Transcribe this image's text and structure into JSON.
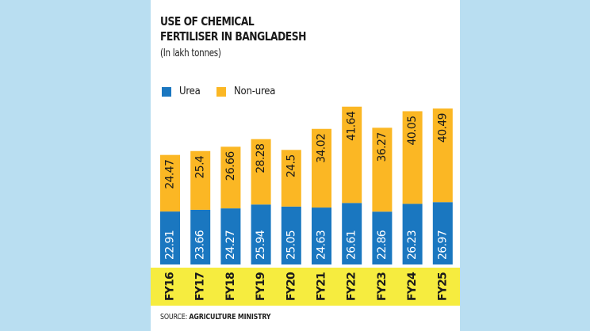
{
  "header": {
    "title_line1": "USE OF CHEMICAL",
    "title_line2": "FERTILISER IN BANGLADESH",
    "subtitle": "(In lakh tonnes)"
  },
  "legend": {
    "urea_label": "Urea",
    "nonurea_label": "Non-urea"
  },
  "source": {
    "prefix": "SOURCE: ",
    "name": "AGRICULTURE MINISTRY"
  },
  "colors": {
    "urea": "#1a77c0",
    "nonurea": "#fbb724",
    "band": "#f6ec3f",
    "background": "#b9def1",
    "card": "#ffffff"
  },
  "chart_data": {
    "type": "bar",
    "stacked": true,
    "title": "USE OF CHEMICAL FERTILISER IN BANGLADESH",
    "subtitle": "(In lakh tonnes)",
    "categories": [
      "FY16",
      "FY17",
      "FY18",
      "FY19",
      "FY20",
      "FY21",
      "FY22",
      "FY23",
      "FY24",
      "FY25"
    ],
    "series": [
      {
        "name": "Urea",
        "values": [
          22.91,
          23.66,
          24.27,
          25.94,
          25.05,
          24.63,
          26.61,
          22.86,
          26.23,
          26.97
        ]
      },
      {
        "name": "Non-urea",
        "values": [
          24.47,
          25.4,
          26.66,
          28.28,
          24.5,
          34.02,
          41.64,
          36.27,
          40.05,
          40.49
        ]
      }
    ],
    "value_labels": {
      "urea": [
        "22.91",
        "23.66",
        "24.27",
        "25.94",
        "25.05",
        "24.63",
        "26.61",
        "22.86",
        "26.23",
        "26.97"
      ],
      "nonurea": [
        "24.47",
        "25.4",
        "26.66",
        "28.28",
        "24.5",
        "34.02",
        "41.64",
        "36.27",
        "40.05",
        "40.49"
      ]
    },
    "xlabel": "",
    "ylabel": "",
    "legend_position": "top-left"
  }
}
